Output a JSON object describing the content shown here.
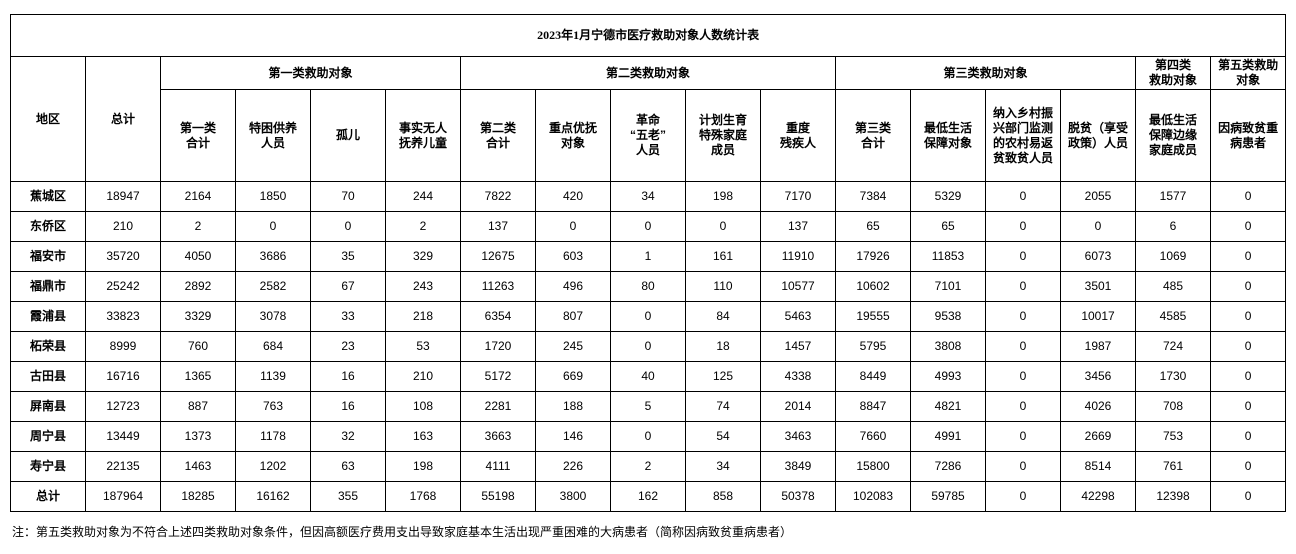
{
  "title": "2023年1月宁德市医疗救助对象人数统计表",
  "footnote": "注：第五类救助对象为不符合上述四类救助对象条件，但因高额医疗费用支出导致家庭基本生活出现严重困难的大病患者（简称因病致贫重病患者）",
  "colors": {
    "border": "#000000",
    "text": "#000000",
    "background": "#ffffff"
  },
  "table": {
    "region_header": "地区",
    "total_header": "总计",
    "groups": [
      {
        "label": "第一类救助对象",
        "span": 4
      },
      {
        "label": "第二类救助对象",
        "span": 5
      },
      {
        "label": "第三类救助对象",
        "span": 4
      },
      {
        "label": "第四类\n救助对象",
        "span": 1
      },
      {
        "label": "第五类救助\n对象",
        "span": 1
      }
    ],
    "sub_headers": [
      "第一类\n合计",
      "特困供养\n人员",
      "孤儿",
      "事实无人\n抚养儿童",
      "第二类\n合计",
      "重点优抚\n对象",
      "革命\n“五老”\n人员",
      "计划生育\n特殊家庭\n成员",
      "重度\n残疾人",
      "第三类\n合计",
      "最低生活\n保障对象",
      "纳入乡村振\n兴部门监测\n的农村易返\n贫致贫人员",
      "脱贫（享受\n政策）人员",
      "最低生活\n保障边缘\n家庭成员",
      "因病致贫重\n病患者"
    ],
    "rows": [
      {
        "region": "蕉城区",
        "values": [
          18947,
          2164,
          1850,
          70,
          244,
          7822,
          420,
          34,
          198,
          7170,
          7384,
          5329,
          0,
          2055,
          1577,
          0
        ]
      },
      {
        "region": "东侨区",
        "values": [
          210,
          2,
          0,
          0,
          2,
          137,
          0,
          0,
          0,
          137,
          65,
          65,
          0,
          0,
          6,
          0
        ]
      },
      {
        "region": "福安市",
        "values": [
          35720,
          4050,
          3686,
          35,
          329,
          12675,
          603,
          1,
          161,
          11910,
          17926,
          11853,
          0,
          6073,
          1069,
          0
        ]
      },
      {
        "region": "福鼎市",
        "values": [
          25242,
          2892,
          2582,
          67,
          243,
          11263,
          496,
          80,
          110,
          10577,
          10602,
          7101,
          0,
          3501,
          485,
          0
        ]
      },
      {
        "region": "霞浦县",
        "values": [
          33823,
          3329,
          3078,
          33,
          218,
          6354,
          807,
          0,
          84,
          5463,
          19555,
          9538,
          0,
          10017,
          4585,
          0
        ]
      },
      {
        "region": "柘荣县",
        "values": [
          8999,
          760,
          684,
          23,
          53,
          1720,
          245,
          0,
          18,
          1457,
          5795,
          3808,
          0,
          1987,
          724,
          0
        ]
      },
      {
        "region": "古田县",
        "values": [
          16716,
          1365,
          1139,
          16,
          210,
          5172,
          669,
          40,
          125,
          4338,
          8449,
          4993,
          0,
          3456,
          1730,
          0
        ]
      },
      {
        "region": "屏南县",
        "values": [
          12723,
          887,
          763,
          16,
          108,
          2281,
          188,
          5,
          74,
          2014,
          8847,
          4821,
          0,
          4026,
          708,
          0
        ]
      },
      {
        "region": "周宁县",
        "values": [
          13449,
          1373,
          1178,
          32,
          163,
          3663,
          146,
          0,
          54,
          3463,
          7660,
          4991,
          0,
          2669,
          753,
          0
        ]
      },
      {
        "region": "寿宁县",
        "values": [
          22135,
          1463,
          1202,
          63,
          198,
          4111,
          226,
          2,
          34,
          3849,
          15800,
          7286,
          0,
          8514,
          761,
          0
        ]
      },
      {
        "region": "总计",
        "values": [
          187964,
          18285,
          16162,
          355,
          1768,
          55198,
          3800,
          162,
          858,
          50378,
          102083,
          59785,
          0,
          42298,
          12398,
          0
        ]
      }
    ]
  }
}
